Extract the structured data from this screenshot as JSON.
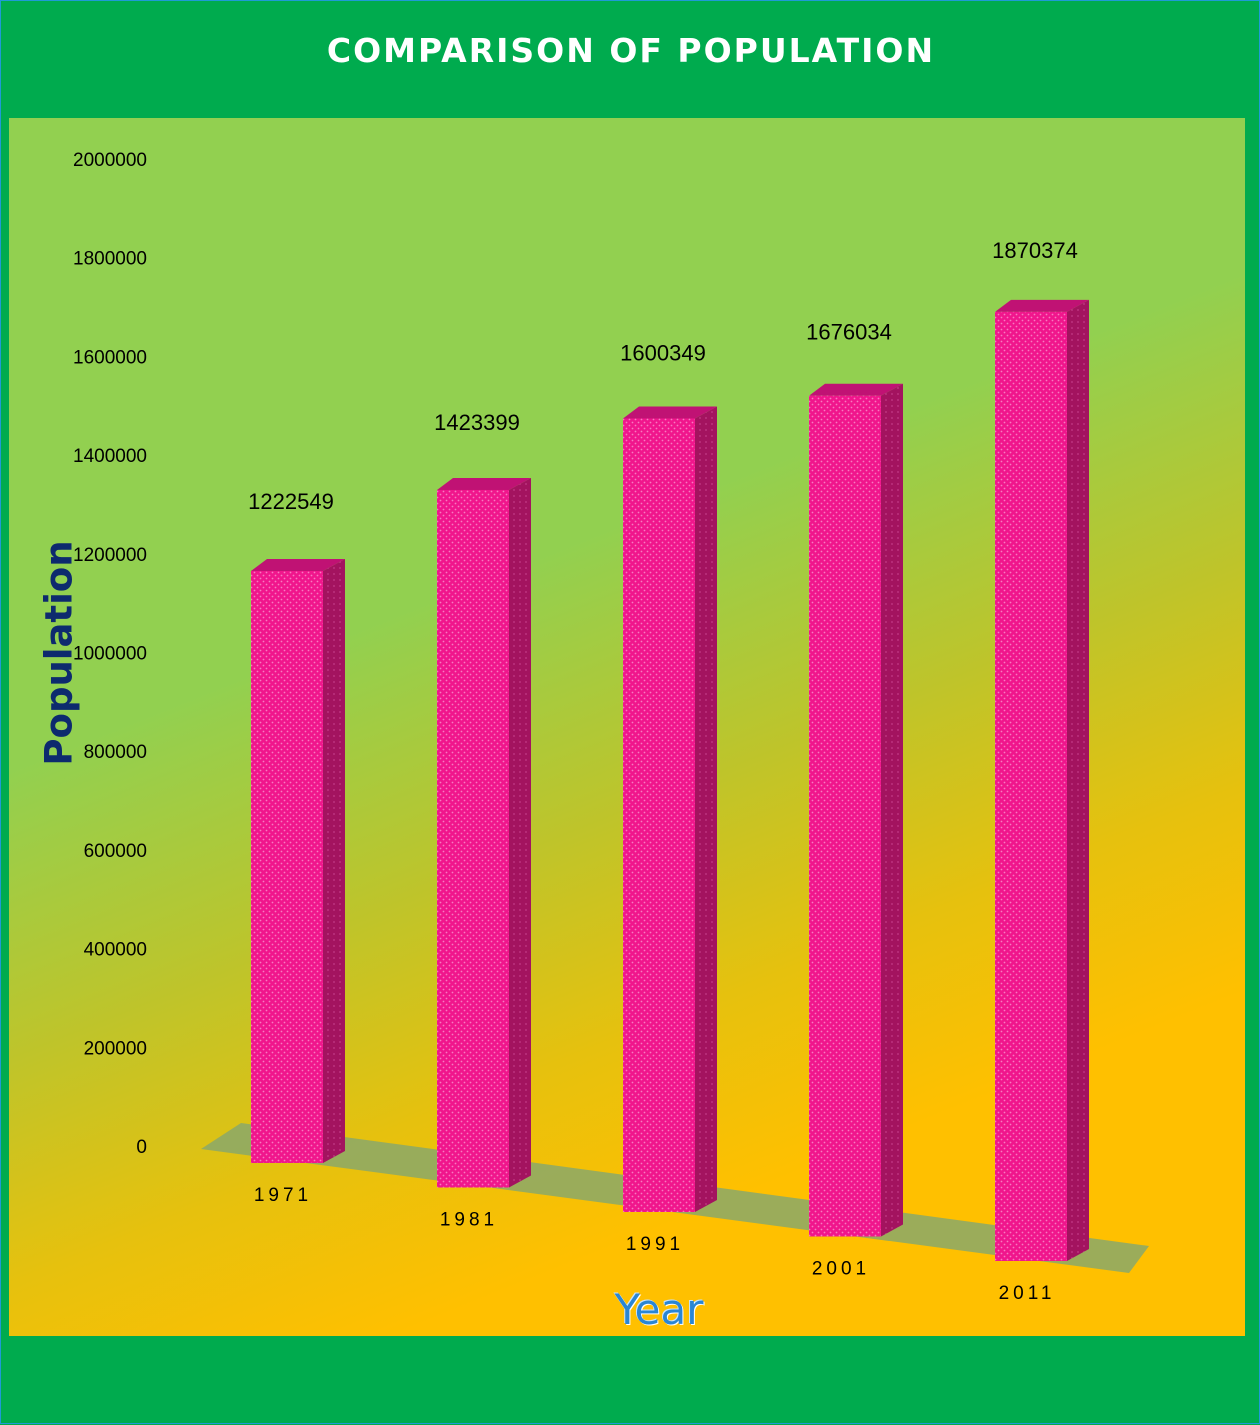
{
  "chart_data": {
    "type": "bar",
    "title": "COMPARISON OF POPULATION",
    "xlabel": "Year",
    "ylabel": "Population",
    "categories": [
      "1971",
      "1981",
      "1991",
      "2001",
      "2011"
    ],
    "values": [
      1222549,
      1423399,
      1600349,
      1676034,
      1870374
    ],
    "data_labels": [
      "1222549",
      "1423399",
      "1600349",
      "1676034",
      "1870374"
    ],
    "ylim": [
      0,
      2000000
    ],
    "yticks": [
      0,
      200000,
      400000,
      600000,
      800000,
      1000000,
      1200000,
      1400000,
      1600000,
      1800000,
      2000000
    ],
    "ytick_labels": [
      "0",
      "200000",
      "400000",
      "600000",
      "800000",
      "1000000",
      "1200000",
      "1400000",
      "1600000",
      "1800000",
      "2000000"
    ],
    "grid": false,
    "legend": "none",
    "style": "3d-column",
    "colors": {
      "bar": "#f0168c",
      "bar_side": "#a3135f",
      "bar_top": "#c01274",
      "floor": "#8aa86a",
      "header_bg": "#00ab4e",
      "ylabel": "#0d2a6e",
      "xlabel": "#2a86d4"
    }
  }
}
